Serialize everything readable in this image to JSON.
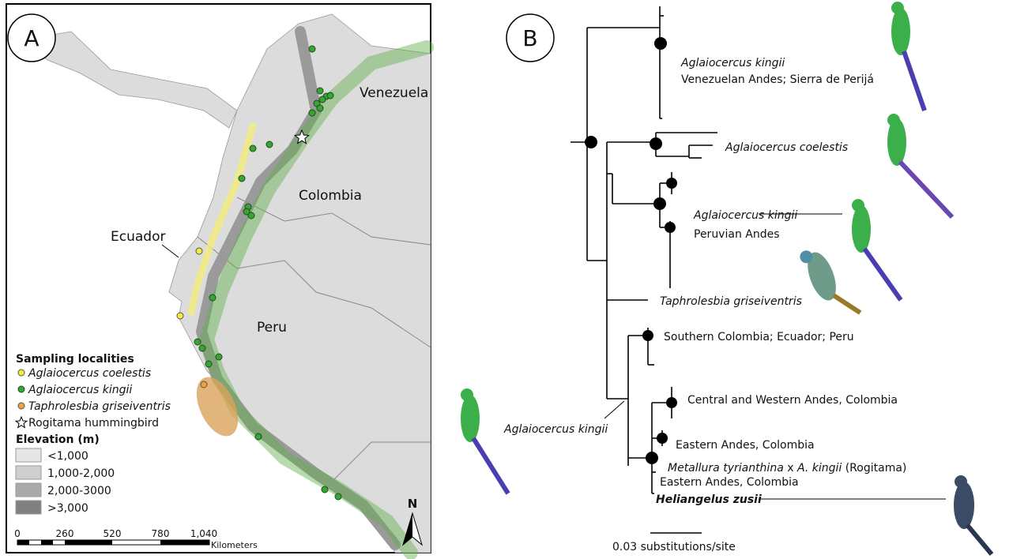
{
  "panel_a": {
    "label": "A",
    "countries": [
      "Venezuela",
      "Colombia",
      "Ecuador",
      "Peru"
    ],
    "legend": {
      "title": "Sampling localities",
      "items": [
        "Aglaiocercus coelestis",
        "Aglaiocercus kingii",
        "Taphrolesbia griseiventris",
        "Rogitama hummingbird"
      ]
    },
    "elevation": {
      "title": "Elevation (m)",
      "items": [
        "<1,000",
        "1,000-2,000",
        "2,000-3000",
        ">3,000"
      ]
    },
    "scale": {
      "ticks": [
        "0",
        "260",
        "520",
        "780",
        "1,040"
      ],
      "unit": "Kilometers"
    },
    "north": "N"
  },
  "panel_b": {
    "label": "B",
    "clades": [
      {
        "name": "Aglaiocercus kingii",
        "region": "Venezuelan Andes; Sierra de Perijá"
      },
      {
        "name": "Aglaiocercus coelestis"
      },
      {
        "name": "Aglaiocercus kingii",
        "region": "Peruvian Andes"
      },
      {
        "name": "Taphrolesbia griseiventris"
      },
      {
        "region": "Southern Colombia; Ecuador; Peru"
      },
      {
        "region": "Central and Western Andes, Colombia"
      },
      {
        "region": "Eastern Andes, Colombia"
      }
    ],
    "hybrid": {
      "parent1": "Metallura tyrianthina",
      "cross": "x",
      "parent2": "A. kingii",
      "note": "(Rogitama)",
      "region": "Eastern Andes, Colombia"
    },
    "new_species": "Heliangelus zusii",
    "annotation": "Aglaiocercus kingii",
    "scale_label": "0.03 substitutions/site"
  }
}
